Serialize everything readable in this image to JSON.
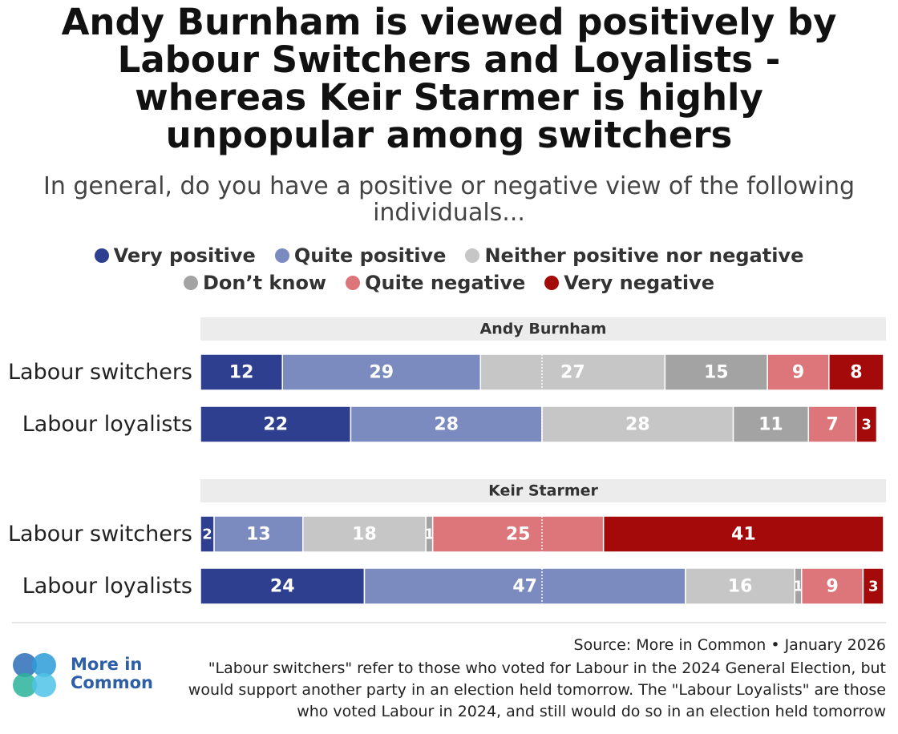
{
  "title": "Andy Burnham is viewed positively by Labour Switchers and Loyalists - whereas Keir Starmer is highly unpopular among switchers",
  "subtitle": "In general, do you have a positive or negative view of the following individuals...",
  "logo": "More in Common",
  "source": "Source: More in Common • January 2026",
  "note": "\"Labour switchers\" refer to those who voted for Labour in the 2024 General Election, but would support another party in an election held tomorrow. The \"Labour Loyalists\" are those who voted Labour in 2024, and still would do so in an election held tomorrow",
  "chart_data": {
    "type": "stacked_bar",
    "panel_titles": [
      "Andy Burnham",
      "Keir Starmer"
    ],
    "categories": [
      "Labour switchers",
      "Labour loyalists",
      "Labour switchers",
      "Labour loyalists"
    ],
    "series": [
      {
        "name": "Very positive",
        "color": "#2e3f8f",
        "values": [
          12,
          22,
          2,
          24
        ]
      },
      {
        "name": "Quite positive",
        "color": "#7b8bc0",
        "values": [
          29,
          28,
          13,
          47
        ]
      },
      {
        "name": "Neither positive nor negative",
        "color": "#c6c6c6",
        "values": [
          27,
          28,
          18,
          16
        ]
      },
      {
        "name": "Don’t know",
        "color": "#a3a3a3",
        "values": [
          15,
          11,
          1,
          1
        ]
      },
      {
        "name": "Quite negative",
        "color": "#dc767a",
        "values": [
          9,
          7,
          25,
          9
        ]
      },
      {
        "name": "Very negative",
        "color": "#a50a0a",
        "values": [
          8,
          3,
          41,
          3
        ]
      }
    ],
    "xlim": [
      0,
      100
    ],
    "reference_line": 50
  }
}
